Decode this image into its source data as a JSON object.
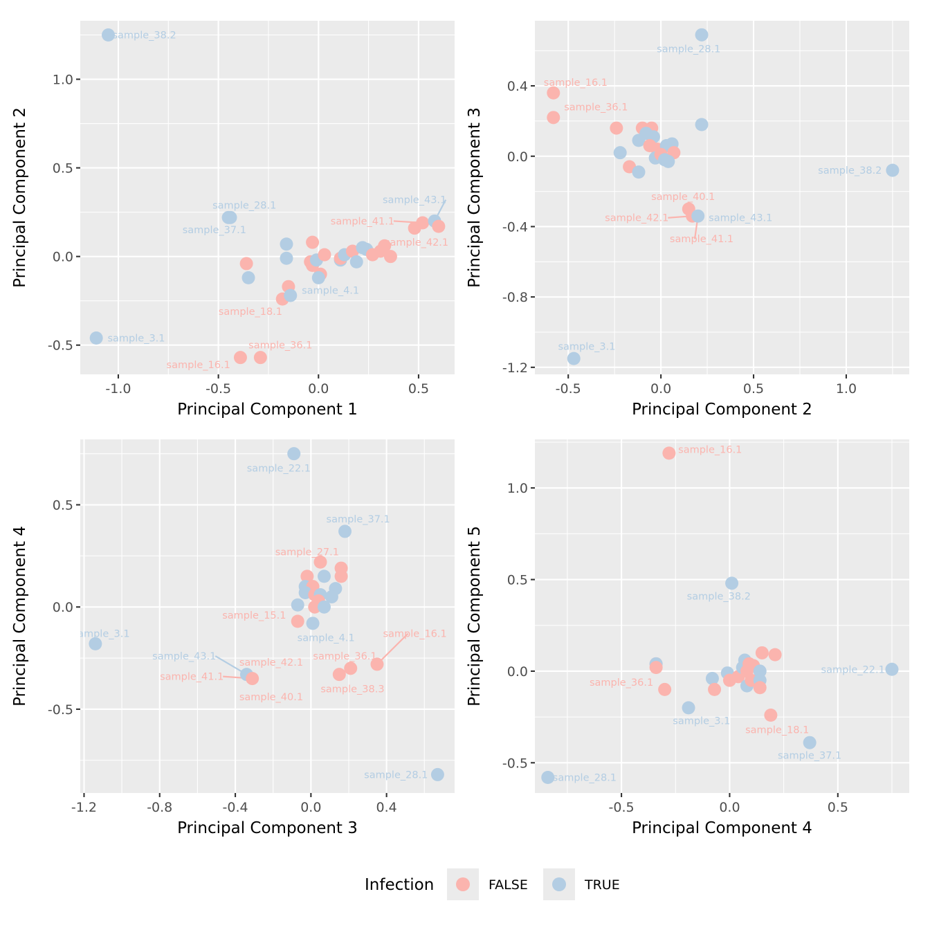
{
  "legend": {
    "title": "Infection",
    "entries": [
      {
        "label": "FALSE",
        "color": "#fbb4ae"
      },
      {
        "label": "TRUE",
        "color": "#b3cde3"
      }
    ]
  },
  "colors": {
    "FALSE": "#fbb4ae",
    "TRUE": "#b3cde3",
    "panel": "#ebebeb",
    "grid": "#ffffff"
  },
  "chart_data": [
    {
      "type": "scatter",
      "xlabel": "Principal Component 1",
      "ylabel": "Principal Component 2",
      "xlim": [
        -1.19,
        0.68
      ],
      "ylim": [
        -0.665,
        1.33
      ],
      "xticks": [
        {
          "v": -1.0,
          "t": "-1.0"
        },
        {
          "v": -0.5,
          "t": "-0.5"
        },
        {
          "v": 0.0,
          "t": "0.0"
        },
        {
          "v": 0.5,
          "t": "0.5"
        }
      ],
      "yticks": [
        {
          "v": -0.5,
          "t": "-0.5"
        },
        {
          "v": 0.0,
          "t": "0.0"
        },
        {
          "v": 0.5,
          "t": "0.5"
        },
        {
          "v": 1.0,
          "t": "1.0"
        }
      ],
      "points": [
        {
          "x": -1.05,
          "y": 1.25,
          "g": "TRUE"
        },
        {
          "x": -1.11,
          "y": -0.46,
          "g": "TRUE"
        },
        {
          "x": -0.45,
          "y": 0.22,
          "g": "TRUE"
        },
        {
          "x": -0.44,
          "y": 0.22,
          "g": "TRUE"
        },
        {
          "x": -0.36,
          "y": -0.04,
          "g": "FALSE"
        },
        {
          "x": -0.35,
          "y": -0.12,
          "g": "TRUE"
        },
        {
          "x": -0.16,
          "y": 0.07,
          "g": "TRUE"
        },
        {
          "x": -0.16,
          "y": -0.01,
          "g": "TRUE"
        },
        {
          "x": -0.15,
          "y": -0.17,
          "g": "FALSE"
        },
        {
          "x": -0.18,
          "y": -0.24,
          "g": "FALSE"
        },
        {
          "x": -0.14,
          "y": -0.22,
          "g": "TRUE"
        },
        {
          "x": -0.39,
          "y": -0.57,
          "g": "FALSE"
        },
        {
          "x": -0.29,
          "y": -0.57,
          "g": "FALSE"
        },
        {
          "x": -0.03,
          "y": 0.08,
          "g": "FALSE"
        },
        {
          "x": -0.04,
          "y": -0.03,
          "g": "FALSE"
        },
        {
          "x": -0.03,
          "y": -0.05,
          "g": "FALSE"
        },
        {
          "x": -0.01,
          "y": -0.02,
          "g": "TRUE"
        },
        {
          "x": 0.01,
          "y": -0.1,
          "g": "FALSE"
        },
        {
          "x": 0.0,
          "y": -0.12,
          "g": "TRUE"
        },
        {
          "x": 0.03,
          "y": 0.01,
          "g": "FALSE"
        },
        {
          "x": 0.11,
          "y": -0.02,
          "g": "TRUE"
        },
        {
          "x": 0.11,
          "y": -0.01,
          "g": "FALSE"
        },
        {
          "x": 0.13,
          "y": 0.01,
          "g": "TRUE"
        },
        {
          "x": 0.17,
          "y": 0.03,
          "g": "FALSE"
        },
        {
          "x": 0.19,
          "y": -0.03,
          "g": "TRUE"
        },
        {
          "x": 0.22,
          "y": 0.05,
          "g": "TRUE"
        },
        {
          "x": 0.24,
          "y": 0.04,
          "g": "TRUE"
        },
        {
          "x": 0.27,
          "y": 0.01,
          "g": "FALSE"
        },
        {
          "x": 0.31,
          "y": 0.03,
          "g": "FALSE"
        },
        {
          "x": 0.33,
          "y": 0.06,
          "g": "FALSE"
        },
        {
          "x": 0.36,
          "y": 0.0,
          "g": "FALSE"
        },
        {
          "x": 0.48,
          "y": 0.16,
          "g": "FALSE"
        },
        {
          "x": 0.52,
          "y": 0.19,
          "g": "FALSE"
        },
        {
          "x": 0.58,
          "y": 0.2,
          "g": "TRUE"
        },
        {
          "x": 0.6,
          "y": 0.17,
          "g": "FALSE"
        }
      ],
      "labels": [
        {
          "t": "sample_38.2",
          "x": -0.87,
          "y": 1.25,
          "g": "TRUE"
        },
        {
          "t": "sample_28.1",
          "x": -0.37,
          "y": 0.29,
          "g": "TRUE"
        },
        {
          "t": "sample_37.1",
          "x": -0.52,
          "y": 0.15,
          "g": "TRUE"
        },
        {
          "t": "sample_43.1",
          "x": 0.48,
          "y": 0.32,
          "g": "TRUE",
          "lx": 0.58,
          "ly": 0.2
        },
        {
          "t": "sample_41.1",
          "x": 0.22,
          "y": 0.2,
          "g": "FALSE",
          "lx": 0.52,
          "ly": 0.19
        },
        {
          "t": "sample_42.1",
          "x": 0.49,
          "y": 0.08,
          "g": "FALSE"
        },
        {
          "t": "sample_4.1",
          "x": 0.06,
          "y": -0.19,
          "g": "TRUE"
        },
        {
          "t": "sample_18.1",
          "x": -0.34,
          "y": -0.31,
          "g": "FALSE"
        },
        {
          "t": "sample_3.1",
          "x": -0.91,
          "y": -0.46,
          "g": "TRUE"
        },
        {
          "t": "sample_36.1",
          "x": -0.19,
          "y": -0.5,
          "g": "FALSE"
        },
        {
          "t": "sample_16.1",
          "x": -0.6,
          "y": -0.61,
          "g": "FALSE"
        }
      ]
    },
    {
      "type": "scatter",
      "xlabel": "Principal Component 2",
      "ylabel": "Principal Component 3",
      "xlim": [
        -0.68,
        1.34
      ],
      "ylim": [
        -1.24,
        0.77
      ],
      "xticks": [
        {
          "v": -0.5,
          "t": "-0.5"
        },
        {
          "v": 0.0,
          "t": "0.0"
        },
        {
          "v": 0.5,
          "t": "0.5"
        },
        {
          "v": 1.0,
          "t": "1.0"
        }
      ],
      "yticks": [
        {
          "v": -1.2,
          "t": "-1.2"
        },
        {
          "v": -0.8,
          "t": "-0.8"
        },
        {
          "v": -0.4,
          "t": "-0.4"
        },
        {
          "v": 0.0,
          "t": "0.0"
        },
        {
          "v": 0.4,
          "t": "0.4"
        }
      ],
      "points": [
        {
          "x": 0.22,
          "y": 0.69,
          "g": "TRUE"
        },
        {
          "x": -0.58,
          "y": 0.36,
          "g": "FALSE"
        },
        {
          "x": -0.58,
          "y": 0.22,
          "g": "FALSE"
        },
        {
          "x": -0.24,
          "y": 0.16,
          "g": "FALSE"
        },
        {
          "x": -0.1,
          "y": 0.16,
          "g": "FALSE"
        },
        {
          "x": -0.05,
          "y": 0.16,
          "g": "FALSE"
        },
        {
          "x": 0.22,
          "y": 0.18,
          "g": "TRUE"
        },
        {
          "x": -0.12,
          "y": 0.09,
          "g": "TRUE"
        },
        {
          "x": -0.08,
          "y": 0.13,
          "g": "TRUE"
        },
        {
          "x": -0.04,
          "y": 0.11,
          "g": "TRUE"
        },
        {
          "x": -0.06,
          "y": 0.06,
          "g": "FALSE"
        },
        {
          "x": -0.02,
          "y": 0.04,
          "g": "FALSE"
        },
        {
          "x": 0.03,
          "y": 0.06,
          "g": "TRUE"
        },
        {
          "x": 0.06,
          "y": 0.07,
          "g": "TRUE"
        },
        {
          "x": 0.07,
          "y": 0.02,
          "g": "FALSE"
        },
        {
          "x": -0.22,
          "y": 0.02,
          "g": "TRUE"
        },
        {
          "x": -0.17,
          "y": -0.06,
          "g": "FALSE"
        },
        {
          "x": -0.12,
          "y": -0.09,
          "g": "TRUE"
        },
        {
          "x": -0.03,
          "y": -0.01,
          "g": "TRUE"
        },
        {
          "x": 0.0,
          "y": 0.01,
          "g": "FALSE"
        },
        {
          "x": 0.02,
          "y": -0.02,
          "g": "TRUE"
        },
        {
          "x": 0.04,
          "y": -0.03,
          "g": "TRUE"
        },
        {
          "x": 1.25,
          "y": -0.08,
          "g": "TRUE"
        },
        {
          "x": 0.15,
          "y": -0.3,
          "g": "FALSE"
        },
        {
          "x": 0.17,
          "y": -0.34,
          "g": "FALSE"
        },
        {
          "x": 0.2,
          "y": -0.34,
          "g": "TRUE"
        },
        {
          "x": -0.47,
          "y": -1.15,
          "g": "TRUE"
        }
      ],
      "labels": [
        {
          "t": "sample_28.1",
          "x": 0.15,
          "y": 0.61,
          "g": "TRUE"
        },
        {
          "t": "sample_16.1",
          "x": -0.46,
          "y": 0.42,
          "g": "FALSE"
        },
        {
          "t": "sample_36.1",
          "x": -0.35,
          "y": 0.28,
          "g": "FALSE"
        },
        {
          "t": "sample_38.2",
          "x": 1.02,
          "y": -0.08,
          "g": "TRUE"
        },
        {
          "t": "sample_40.1",
          "x": 0.12,
          "y": -0.23,
          "g": "FALSE"
        },
        {
          "t": "sample_42.1",
          "x": -0.13,
          "y": -0.35,
          "g": "FALSE",
          "lx": 0.17,
          "ly": -0.34
        },
        {
          "t": "sample_43.1",
          "x": 0.43,
          "y": -0.35,
          "g": "TRUE"
        },
        {
          "t": "sample_41.1",
          "x": 0.22,
          "y": -0.47,
          "g": "FALSE",
          "lx": 0.2,
          "ly": -0.34
        },
        {
          "t": "sample_3.1",
          "x": -0.4,
          "y": -1.08,
          "g": "TRUE"
        }
      ]
    },
    {
      "type": "scatter",
      "xlabel": "Principal Component 3",
      "ylabel": "Principal Component 4",
      "xlim": [
        -1.22,
        0.76
      ],
      "ylim": [
        -0.91,
        0.82
      ],
      "xticks": [
        {
          "v": -1.2,
          "t": "-1.2"
        },
        {
          "v": -0.8,
          "t": "-0.8"
        },
        {
          "v": -0.4,
          "t": "-0.4"
        },
        {
          "v": 0.0,
          "t": "0.0"
        },
        {
          "v": 0.4,
          "t": "0.4"
        }
      ],
      "yticks": [
        {
          "v": -0.5,
          "t": "-0.5"
        },
        {
          "v": 0.0,
          "t": "0.0"
        },
        {
          "v": 0.5,
          "t": "0.5"
        }
      ],
      "points": [
        {
          "x": -0.09,
          "y": 0.75,
          "g": "TRUE"
        },
        {
          "x": 0.18,
          "y": 0.37,
          "g": "TRUE"
        },
        {
          "x": 0.05,
          "y": 0.22,
          "g": "FALSE"
        },
        {
          "x": 0.16,
          "y": 0.19,
          "g": "FALSE"
        },
        {
          "x": 0.16,
          "y": 0.15,
          "g": "FALSE"
        },
        {
          "x": -0.02,
          "y": 0.15,
          "g": "FALSE"
        },
        {
          "x": 0.07,
          "y": 0.15,
          "g": "TRUE"
        },
        {
          "x": -0.03,
          "y": 0.1,
          "g": "TRUE"
        },
        {
          "x": 0.01,
          "y": 0.1,
          "g": "FALSE"
        },
        {
          "x": 0.13,
          "y": 0.09,
          "g": "TRUE"
        },
        {
          "x": -0.03,
          "y": 0.07,
          "g": "TRUE"
        },
        {
          "x": 0.02,
          "y": 0.06,
          "g": "FALSE"
        },
        {
          "x": 0.05,
          "y": 0.06,
          "g": "TRUE"
        },
        {
          "x": 0.11,
          "y": 0.05,
          "g": "TRUE"
        },
        {
          "x": 0.04,
          "y": 0.03,
          "g": "FALSE"
        },
        {
          "x": -0.07,
          "y": 0.01,
          "g": "TRUE"
        },
        {
          "x": 0.02,
          "y": 0.0,
          "g": "FALSE"
        },
        {
          "x": 0.07,
          "y": 0.0,
          "g": "TRUE"
        },
        {
          "x": -0.07,
          "y": -0.07,
          "g": "FALSE"
        },
        {
          "x": 0.01,
          "y": -0.08,
          "g": "TRUE"
        },
        {
          "x": -1.14,
          "y": -0.18,
          "g": "TRUE"
        },
        {
          "x": -0.34,
          "y": -0.33,
          "g": "TRUE"
        },
        {
          "x": -0.31,
          "y": -0.35,
          "g": "FALSE"
        },
        {
          "x": 0.15,
          "y": -0.33,
          "g": "FALSE"
        },
        {
          "x": 0.21,
          "y": -0.3,
          "g": "FALSE"
        },
        {
          "x": 0.35,
          "y": -0.28,
          "g": "FALSE"
        },
        {
          "x": 0.67,
          "y": -0.82,
          "g": "TRUE"
        }
      ],
      "labels": [
        {
          "t": "sample_22.1",
          "x": -0.17,
          "y": 0.68,
          "g": "TRUE"
        },
        {
          "t": "sample_37.1",
          "x": 0.25,
          "y": 0.43,
          "g": "TRUE"
        },
        {
          "t": "sample_27.1",
          "x": -0.02,
          "y": 0.27,
          "g": "FALSE"
        },
        {
          "t": "sample_15.1",
          "x": -0.3,
          "y": -0.04,
          "g": "FALSE"
        },
        {
          "t": "sample_4.1",
          "x": 0.08,
          "y": -0.15,
          "g": "TRUE"
        },
        {
          "t": "sample_3.1",
          "x": -1.11,
          "y": -0.13,
          "g": "TRUE"
        },
        {
          "t": "sample_16.1",
          "x": 0.55,
          "y": -0.13,
          "g": "FALSE",
          "lx": 0.35,
          "ly": -0.28
        },
        {
          "t": "sample_43.1",
          "x": -0.67,
          "y": -0.24,
          "g": "TRUE",
          "lx": -0.34,
          "ly": -0.33
        },
        {
          "t": "sample_36.1",
          "x": 0.18,
          "y": -0.24,
          "g": "FALSE"
        },
        {
          "t": "sample_42.1",
          "x": -0.21,
          "y": -0.27,
          "g": "FALSE"
        },
        {
          "t": "sample_41.1",
          "x": -0.63,
          "y": -0.34,
          "g": "FALSE",
          "lx": -0.31,
          "ly": -0.35
        },
        {
          "t": "sample_38.3",
          "x": 0.22,
          "y": -0.4,
          "g": "FALSE"
        },
        {
          "t": "sample_40.1",
          "x": -0.21,
          "y": -0.44,
          "g": "FALSE"
        },
        {
          "t": "sample_28.1",
          "x": 0.45,
          "y": -0.82,
          "g": "TRUE"
        }
      ]
    },
    {
      "type": "scatter",
      "xlabel": "Principal Component 4",
      "ylabel": "Principal Component 5",
      "xlim": [
        -0.9,
        0.83
      ],
      "ylim": [
        -0.665,
        1.265
      ],
      "xticks": [
        {
          "v": -0.5,
          "t": "-0.5"
        },
        {
          "v": 0.0,
          "t": "0.0"
        },
        {
          "v": 0.5,
          "t": "0.5"
        }
      ],
      "yticks": [
        {
          "v": -0.5,
          "t": "-0.5"
        },
        {
          "v": 0.0,
          "t": "0.0"
        },
        {
          "v": 0.5,
          "t": "0.5"
        },
        {
          "v": 1.0,
          "t": "1.0"
        }
      ],
      "points": [
        {
          "x": -0.28,
          "y": 1.19,
          "g": "FALSE"
        },
        {
          "x": 0.01,
          "y": 0.48,
          "g": "TRUE"
        },
        {
          "x": -0.34,
          "y": 0.04,
          "g": "FALSE"
        },
        {
          "x": -0.34,
          "y": 0.04,
          "g": "TRUE"
        },
        {
          "x": -0.34,
          "y": 0.02,
          "g": "FALSE"
        },
        {
          "x": -0.3,
          "y": -0.1,
          "g": "FALSE"
        },
        {
          "x": -0.19,
          "y": -0.2,
          "g": "TRUE"
        },
        {
          "x": -0.08,
          "y": -0.04,
          "g": "TRUE"
        },
        {
          "x": -0.07,
          "y": -0.1,
          "g": "FALSE"
        },
        {
          "x": -0.01,
          "y": -0.01,
          "g": "TRUE"
        },
        {
          "x": 0.0,
          "y": -0.05,
          "g": "FALSE"
        },
        {
          "x": 0.04,
          "y": -0.03,
          "g": "FALSE"
        },
        {
          "x": 0.06,
          "y": 0.02,
          "g": "TRUE"
        },
        {
          "x": 0.07,
          "y": 0.06,
          "g": "TRUE"
        },
        {
          "x": 0.08,
          "y": 0.0,
          "g": "FALSE"
        },
        {
          "x": 0.08,
          "y": -0.08,
          "g": "TRUE"
        },
        {
          "x": 0.09,
          "y": 0.04,
          "g": "FALSE"
        },
        {
          "x": 0.11,
          "y": 0.03,
          "g": "FALSE"
        },
        {
          "x": 0.1,
          "y": -0.05,
          "g": "FALSE"
        },
        {
          "x": 0.14,
          "y": 0.0,
          "g": "TRUE"
        },
        {
          "x": 0.14,
          "y": -0.05,
          "g": "TRUE"
        },
        {
          "x": 0.14,
          "y": -0.09,
          "g": "FALSE"
        },
        {
          "x": 0.15,
          "y": 0.1,
          "g": "FALSE"
        },
        {
          "x": 0.21,
          "y": 0.09,
          "g": "FALSE"
        },
        {
          "x": 0.19,
          "y": -0.24,
          "g": "FALSE"
        },
        {
          "x": 0.37,
          "y": -0.39,
          "g": "TRUE"
        },
        {
          "x": 0.75,
          "y": 0.01,
          "g": "TRUE"
        },
        {
          "x": -0.84,
          "y": -0.58,
          "g": "TRUE"
        }
      ],
      "labels": [
        {
          "t": "sample_16.1",
          "x": -0.09,
          "y": 1.21,
          "g": "FALSE"
        },
        {
          "t": "sample_38.2",
          "x": -0.05,
          "y": 0.41,
          "g": "TRUE"
        },
        {
          "t": "sample_22.1",
          "x": 0.57,
          "y": 0.01,
          "g": "TRUE"
        },
        {
          "t": "sample_36.1",
          "x": -0.5,
          "y": -0.06,
          "g": "FALSE"
        },
        {
          "t": "sample_3.1",
          "x": -0.13,
          "y": -0.27,
          "g": "TRUE"
        },
        {
          "t": "sample_18.1",
          "x": 0.22,
          "y": -0.32,
          "g": "FALSE"
        },
        {
          "t": "sample_37.1",
          "x": 0.37,
          "y": -0.46,
          "g": "TRUE"
        },
        {
          "t": "sample_28.1",
          "x": -0.67,
          "y": -0.58,
          "g": "TRUE"
        }
      ]
    }
  ]
}
